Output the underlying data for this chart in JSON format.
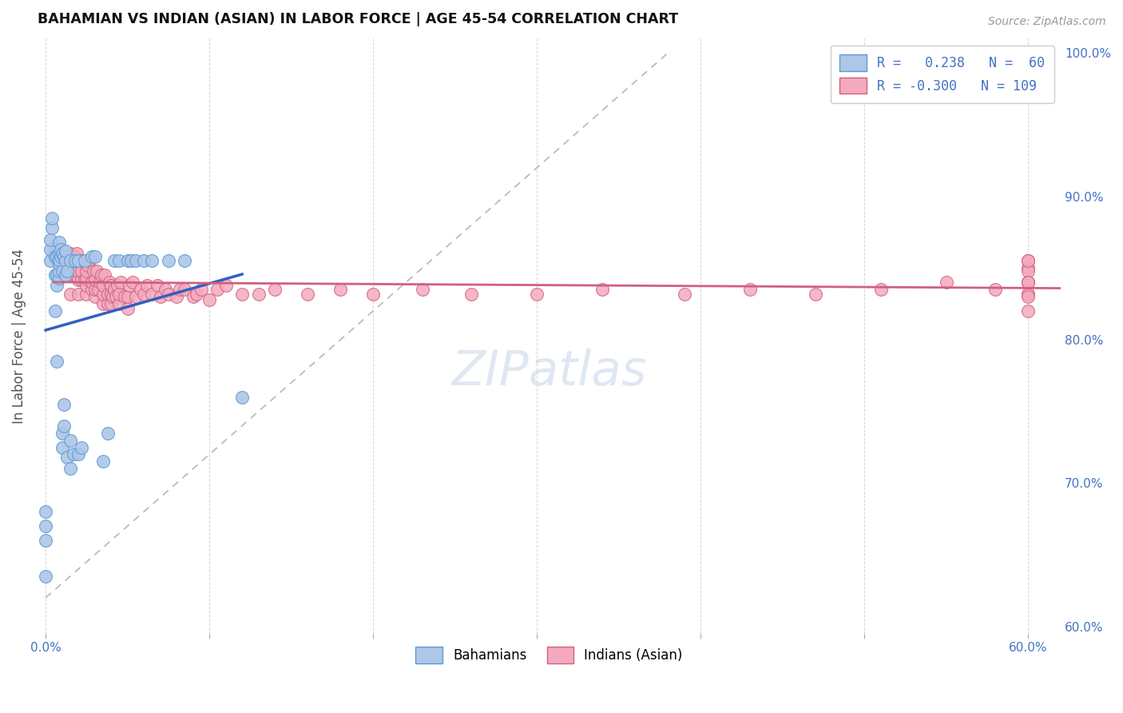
{
  "title": "BAHAMIAN VS INDIAN (ASIAN) IN LABOR FORCE | AGE 45-54 CORRELATION CHART",
  "source": "Source: ZipAtlas.com",
  "ylabel": "In Labor Force | Age 45-54",
  "xlim": [
    -0.005,
    0.62
  ],
  "ylim": [
    0.595,
    1.01
  ],
  "xtick_positions": [
    0.0,
    0.1,
    0.2,
    0.3,
    0.4,
    0.5,
    0.6
  ],
  "xticklabels": [
    "0.0%",
    "",
    "",
    "",
    "",
    "",
    "60.0%"
  ],
  "yticks_right": [
    0.6,
    0.7,
    0.8,
    0.9,
    1.0
  ],
  "yticklabels_right": [
    "60.0%",
    "70.0%",
    "80.0%",
    "90.0%",
    "100.0%"
  ],
  "bahamian_color": "#aec6e8",
  "bahamian_edge": "#5b9bd5",
  "indian_color": "#f4a9be",
  "indian_edge": "#d06080",
  "trend_blue": "#3060c0",
  "trend_pink": "#d06080",
  "ref_line_color": "#bbbbbb",
  "grid_color": "#cccccc",
  "watermark": "ZIPatlas",
  "watermark_color": "#c0d0e8",
  "bahamian_x": [
    0.0,
    0.0,
    0.0,
    0.0,
    0.003,
    0.003,
    0.003,
    0.004,
    0.004,
    0.006,
    0.006,
    0.006,
    0.007,
    0.007,
    0.007,
    0.007,
    0.008,
    0.008,
    0.008,
    0.008,
    0.008,
    0.008,
    0.009,
    0.009,
    0.01,
    0.01,
    0.01,
    0.01,
    0.011,
    0.011,
    0.011,
    0.012,
    0.012,
    0.012,
    0.013,
    0.013,
    0.015,
    0.015,
    0.015,
    0.017,
    0.018,
    0.02,
    0.02,
    0.022,
    0.024,
    0.028,
    0.03,
    0.035,
    0.038,
    0.042,
    0.045,
    0.05,
    0.052,
    0.055,
    0.06,
    0.065,
    0.075,
    0.085,
    0.12
  ],
  "bahamian_y": [
    0.635,
    0.66,
    0.67,
    0.68,
    0.855,
    0.863,
    0.87,
    0.878,
    0.885,
    0.82,
    0.845,
    0.858,
    0.785,
    0.838,
    0.845,
    0.858,
    0.843,
    0.848,
    0.853,
    0.856,
    0.86,
    0.868,
    0.858,
    0.863,
    0.725,
    0.735,
    0.848,
    0.86,
    0.74,
    0.755,
    0.858,
    0.845,
    0.855,
    0.862,
    0.718,
    0.848,
    0.71,
    0.73,
    0.855,
    0.72,
    0.855,
    0.72,
    0.855,
    0.725,
    0.855,
    0.858,
    0.858,
    0.715,
    0.735,
    0.855,
    0.855,
    0.855,
    0.855,
    0.855,
    0.855,
    0.855,
    0.855,
    0.855,
    0.76
  ],
  "indian_x": [
    0.005,
    0.008,
    0.01,
    0.01,
    0.012,
    0.013,
    0.014,
    0.015,
    0.015,
    0.015,
    0.016,
    0.016,
    0.017,
    0.018,
    0.018,
    0.018,
    0.018,
    0.019,
    0.02,
    0.02,
    0.02,
    0.021,
    0.022,
    0.022,
    0.023,
    0.024,
    0.025,
    0.025,
    0.025,
    0.025,
    0.026,
    0.027,
    0.028,
    0.028,
    0.029,
    0.03,
    0.03,
    0.03,
    0.031,
    0.032,
    0.033,
    0.034,
    0.035,
    0.035,
    0.035,
    0.036,
    0.038,
    0.038,
    0.039,
    0.04,
    0.04,
    0.04,
    0.041,
    0.042,
    0.043,
    0.044,
    0.045,
    0.045,
    0.046,
    0.048,
    0.05,
    0.05,
    0.051,
    0.053,
    0.055,
    0.058,
    0.06,
    0.062,
    0.065,
    0.068,
    0.07,
    0.073,
    0.075,
    0.08,
    0.082,
    0.085,
    0.09,
    0.092,
    0.095,
    0.1,
    0.105,
    0.11,
    0.12,
    0.13,
    0.14,
    0.16,
    0.18,
    0.2,
    0.23,
    0.26,
    0.3,
    0.34,
    0.39,
    0.43,
    0.47,
    0.51,
    0.55,
    0.58,
    0.6,
    0.6,
    0.6,
    0.6,
    0.6,
    0.6,
    0.6,
    0.6,
    0.6,
    0.6,
    0.6
  ],
  "indian_y": [
    0.86,
    0.858,
    0.848,
    0.858,
    0.86,
    0.848,
    0.855,
    0.832,
    0.848,
    0.86,
    0.845,
    0.852,
    0.858,
    0.845,
    0.85,
    0.853,
    0.858,
    0.86,
    0.832,
    0.842,
    0.848,
    0.855,
    0.842,
    0.848,
    0.855,
    0.842,
    0.832,
    0.838,
    0.843,
    0.848,
    0.852,
    0.855,
    0.835,
    0.84,
    0.848,
    0.83,
    0.835,
    0.842,
    0.848,
    0.835,
    0.84,
    0.845,
    0.825,
    0.832,
    0.838,
    0.845,
    0.825,
    0.832,
    0.84,
    0.825,
    0.832,
    0.838,
    0.83,
    0.835,
    0.83,
    0.838,
    0.825,
    0.832,
    0.84,
    0.83,
    0.822,
    0.83,
    0.838,
    0.84,
    0.83,
    0.835,
    0.832,
    0.838,
    0.832,
    0.838,
    0.83,
    0.835,
    0.832,
    0.83,
    0.835,
    0.835,
    0.83,
    0.832,
    0.835,
    0.828,
    0.835,
    0.838,
    0.832,
    0.832,
    0.835,
    0.832,
    0.835,
    0.832,
    0.835,
    0.832,
    0.832,
    0.835,
    0.832,
    0.835,
    0.832,
    0.835,
    0.84,
    0.835,
    0.832,
    0.84,
    0.85,
    0.855,
    0.848,
    0.832,
    0.84,
    0.82,
    0.83,
    0.84,
    0.855
  ]
}
